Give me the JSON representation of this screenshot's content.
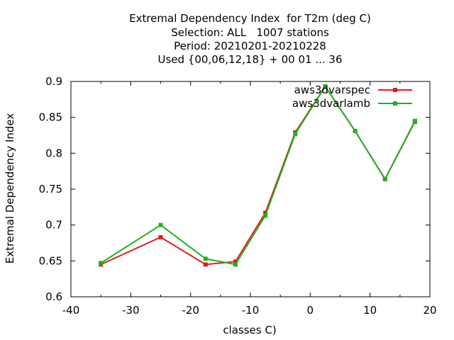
{
  "chart_data": {
    "type": "line",
    "title_lines": [
      "Extremal Dependency Index  for T2m (deg C)",
      "Selection: ALL   1007 stations",
      "Period: 20210201-20210228",
      "Used {00,06,12,18} + 00 01 ... 36"
    ],
    "xlabel": "classes C)",
    "ylabel": "Extremal Dependency Index",
    "xlim": [
      -40,
      20
    ],
    "ylim": [
      0.6,
      0.9
    ],
    "xticks": [
      -40,
      -30,
      -20,
      -10,
      0,
      10,
      20
    ],
    "xtick_labels": [
      "-40",
      "-30",
      "-20",
      "-10",
      "0",
      "10",
      "20"
    ],
    "yticks": [
      0.6,
      0.65,
      0.7,
      0.75,
      0.8,
      0.85,
      0.9
    ],
    "ytick_labels": [
      "0.6",
      "0.65",
      "0.7",
      "0.75",
      "0.8",
      "0.85",
      "0.9"
    ],
    "x": [
      -35,
      -25,
      -17.5,
      -12.5,
      -7.5,
      -2.5,
      2.5,
      7.5,
      12.5,
      17.5
    ],
    "series": [
      {
        "name": "aws3dvarspec",
        "color": "#e41a1c",
        "values": [
          0.645,
          0.683,
          0.645,
          0.649,
          0.717,
          0.829,
          0.893,
          0.831,
          0.764,
          0.844
        ]
      },
      {
        "name": "aws3dvarlamb",
        "color": "#1db31d",
        "values": [
          0.647,
          0.7,
          0.653,
          0.645,
          0.713,
          0.827,
          0.893,
          0.831,
          0.764,
          0.845
        ]
      }
    ],
    "grid": false,
    "legend_position": "top-right"
  }
}
